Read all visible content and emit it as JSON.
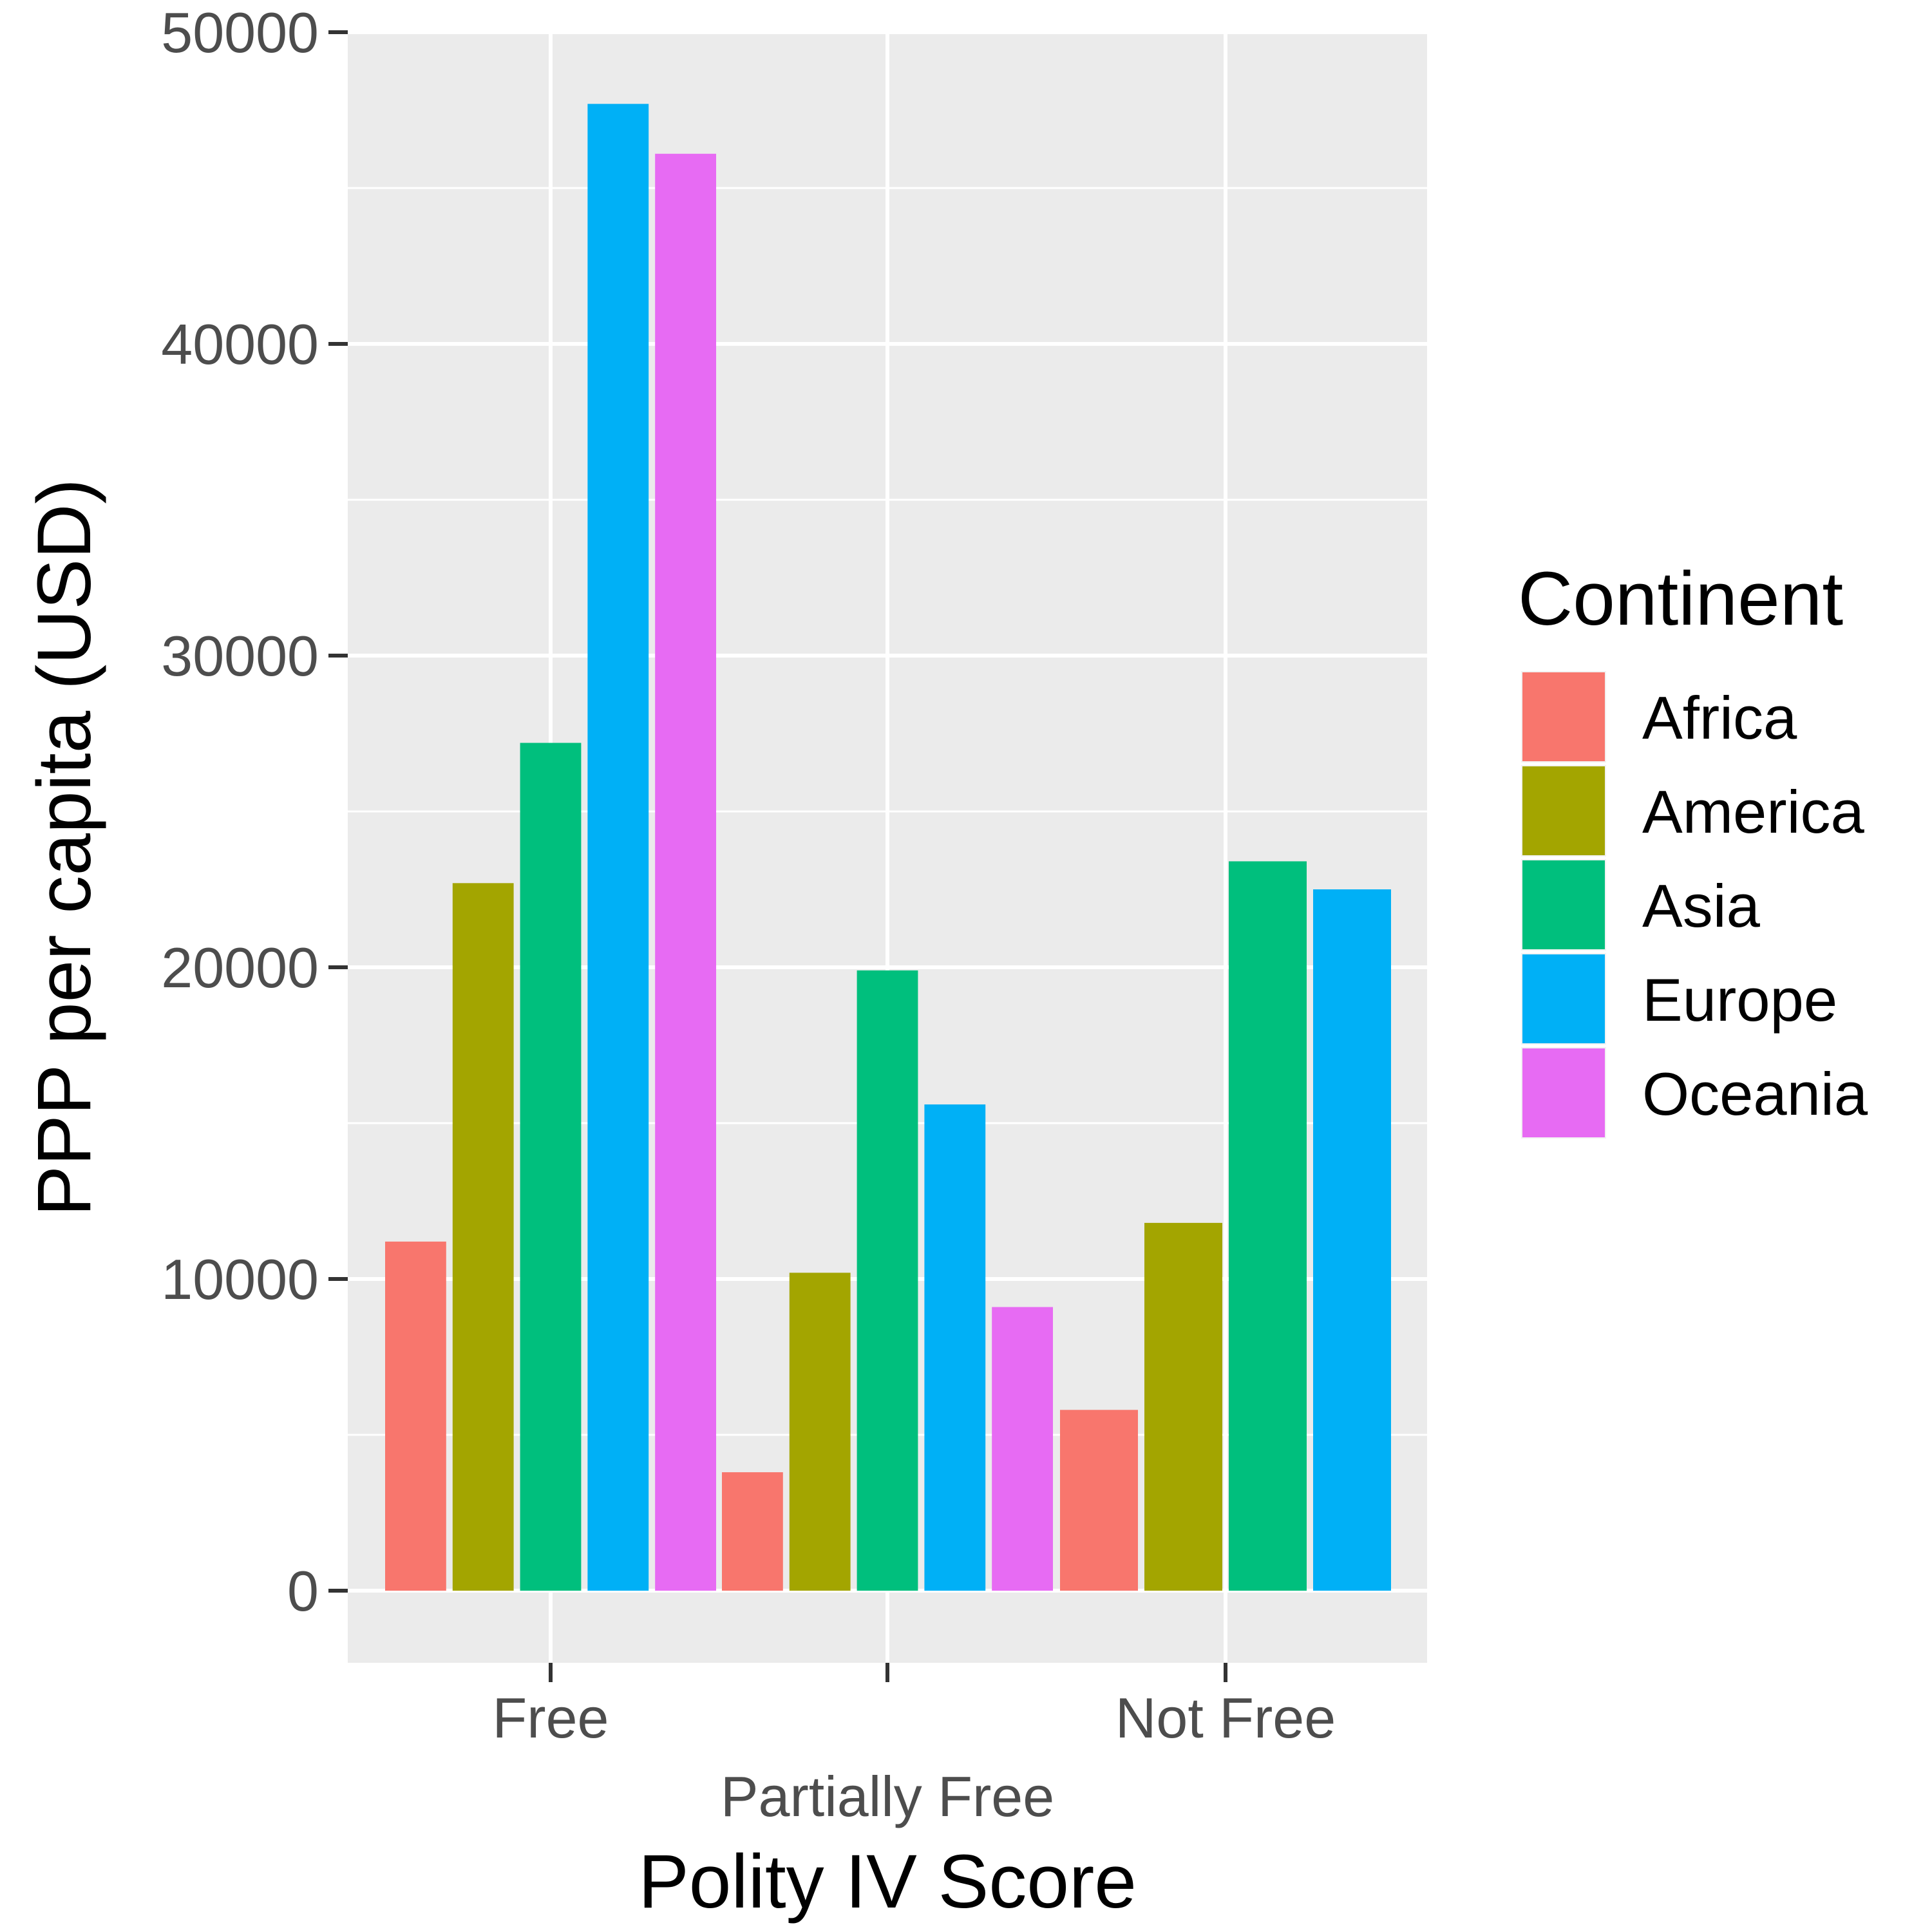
{
  "chart_data": {
    "type": "bar",
    "xlabel": "Polity IV Score",
    "ylabel": "PPP per capita (USD)",
    "categories": [
      "Free",
      "Partially Free",
      "Not Free"
    ],
    "ylim": [
      0,
      50000
    ],
    "yticks": [
      0,
      10000,
      20000,
      30000,
      40000,
      50000
    ],
    "ytick_labels": [
      "0",
      "10000",
      "20000",
      "30000",
      "40000",
      "50000"
    ],
    "grid": true,
    "legend": {
      "title": "Continent",
      "position": "right",
      "entries": [
        "Africa",
        "America",
        "Asia",
        "Europe",
        "Oceania"
      ]
    },
    "colors": {
      "Africa": "#F8766D",
      "America": "#A3A500",
      "Asia": "#00BF7D",
      "Europe": "#00B0F6",
      "Oceania": "#E76BF3",
      "panel": "#EBEBEB",
      "grid": "#FFFFFF"
    },
    "series": [
      {
        "name": "Africa",
        "values": [
          11200,
          3800,
          5800
        ]
      },
      {
        "name": "America",
        "values": [
          22700,
          10200,
          11800
        ]
      },
      {
        "name": "Asia",
        "values": [
          27200,
          19900,
          23400
        ]
      },
      {
        "name": "Europe",
        "values": [
          47700,
          15600,
          22500
        ]
      },
      {
        "name": "Oceania",
        "values": [
          46100,
          9100,
          null
        ]
      }
    ]
  }
}
